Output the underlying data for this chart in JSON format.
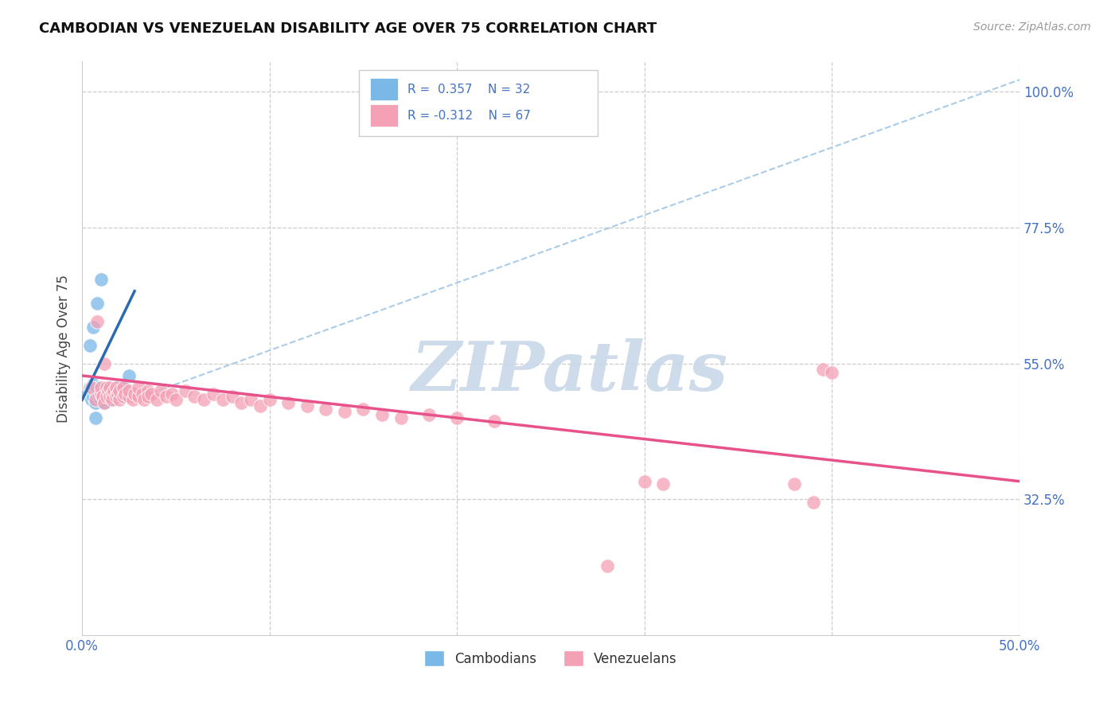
{
  "title": "CAMBODIAN VS VENEZUELAN DISABILITY AGE OVER 75 CORRELATION CHART",
  "source": "Source: ZipAtlas.com",
  "ylabel": "Disability Age Over 75",
  "xlim": [
    0.0,
    0.5
  ],
  "ylim": [
    0.1,
    1.05
  ],
  "ytick_vals": [
    0.325,
    0.55,
    0.775,
    1.0
  ],
  "ytick_labels": [
    "32.5%",
    "55.0%",
    "77.5%",
    "100.0%"
  ],
  "xtick_vals": [
    0.0,
    0.5
  ],
  "xtick_labels": [
    "0.0%",
    "50.0%"
  ],
  "cambodian_R": 0.357,
  "cambodian_N": 32,
  "venezuelan_R": -0.312,
  "venezuelan_N": 67,
  "cambodian_color": "#7ab8e8",
  "venezuelan_color": "#f4a0b5",
  "cambodian_line_color": "#2b6cb0",
  "venezuelan_line_color": "#e8528a",
  "diagonal_line_color": "#aacce8",
  "background_color": "#ffffff",
  "watermark_text": "ZIPatlas",
  "watermark_color": "#c8d8e8",
  "cambodian_points": [
    [
      0.003,
      0.5
    ],
    [
      0.004,
      0.51
    ],
    [
      0.005,
      0.49
    ],
    [
      0.005,
      0.505
    ],
    [
      0.006,
      0.495
    ],
    [
      0.006,
      0.515
    ],
    [
      0.007,
      0.5
    ],
    [
      0.007,
      0.485
    ],
    [
      0.008,
      0.505
    ],
    [
      0.008,
      0.51
    ],
    [
      0.009,
      0.495
    ],
    [
      0.009,
      0.5
    ],
    [
      0.01,
      0.49
    ],
    [
      0.01,
      0.505
    ],
    [
      0.011,
      0.5
    ],
    [
      0.011,
      0.495
    ],
    [
      0.012,
      0.51
    ],
    [
      0.012,
      0.485
    ],
    [
      0.013,
      0.5
    ],
    [
      0.014,
      0.505
    ],
    [
      0.015,
      0.495
    ],
    [
      0.016,
      0.5
    ],
    [
      0.017,
      0.49
    ],
    [
      0.018,
      0.51
    ],
    [
      0.02,
      0.505
    ],
    [
      0.022,
      0.515
    ],
    [
      0.025,
      0.53
    ],
    [
      0.004,
      0.58
    ],
    [
      0.006,
      0.61
    ],
    [
      0.008,
      0.65
    ],
    [
      0.01,
      0.69
    ],
    [
      0.007,
      0.46
    ]
  ],
  "venezuelan_points": [
    [
      0.005,
      0.51
    ],
    [
      0.007,
      0.49
    ],
    [
      0.008,
      0.62
    ],
    [
      0.01,
      0.5
    ],
    [
      0.01,
      0.51
    ],
    [
      0.011,
      0.495
    ],
    [
      0.012,
      0.485
    ],
    [
      0.012,
      0.55
    ],
    [
      0.013,
      0.51
    ],
    [
      0.013,
      0.495
    ],
    [
      0.014,
      0.505
    ],
    [
      0.015,
      0.495
    ],
    [
      0.015,
      0.51
    ],
    [
      0.016,
      0.5
    ],
    [
      0.016,
      0.49
    ],
    [
      0.017,
      0.505
    ],
    [
      0.018,
      0.495
    ],
    [
      0.018,
      0.51
    ],
    [
      0.019,
      0.5
    ],
    [
      0.02,
      0.49
    ],
    [
      0.02,
      0.505
    ],
    [
      0.022,
      0.495
    ],
    [
      0.022,
      0.51
    ],
    [
      0.023,
      0.5
    ],
    [
      0.025,
      0.495
    ],
    [
      0.025,
      0.505
    ],
    [
      0.027,
      0.49
    ],
    [
      0.028,
      0.5
    ],
    [
      0.03,
      0.495
    ],
    [
      0.03,
      0.51
    ],
    [
      0.032,
      0.5
    ],
    [
      0.033,
      0.49
    ],
    [
      0.035,
      0.505
    ],
    [
      0.035,
      0.495
    ],
    [
      0.037,
      0.5
    ],
    [
      0.04,
      0.49
    ],
    [
      0.042,
      0.505
    ],
    [
      0.045,
      0.495
    ],
    [
      0.048,
      0.5
    ],
    [
      0.05,
      0.49
    ],
    [
      0.055,
      0.505
    ],
    [
      0.06,
      0.495
    ],
    [
      0.065,
      0.49
    ],
    [
      0.07,
      0.5
    ],
    [
      0.075,
      0.49
    ],
    [
      0.08,
      0.495
    ],
    [
      0.085,
      0.485
    ],
    [
      0.09,
      0.49
    ],
    [
      0.095,
      0.48
    ],
    [
      0.1,
      0.49
    ],
    [
      0.11,
      0.485
    ],
    [
      0.12,
      0.48
    ],
    [
      0.13,
      0.475
    ],
    [
      0.14,
      0.47
    ],
    [
      0.15,
      0.475
    ],
    [
      0.16,
      0.465
    ],
    [
      0.17,
      0.46
    ],
    [
      0.185,
      0.465
    ],
    [
      0.2,
      0.46
    ],
    [
      0.22,
      0.455
    ],
    [
      0.395,
      0.54
    ],
    [
      0.4,
      0.535
    ],
    [
      0.38,
      0.35
    ],
    [
      0.39,
      0.32
    ],
    [
      0.3,
      0.355
    ],
    [
      0.31,
      0.35
    ],
    [
      0.28,
      0.215
    ]
  ],
  "blue_line": [
    [
      0.0,
      0.49
    ],
    [
      0.028,
      0.67
    ]
  ],
  "pink_line": [
    [
      0.0,
      0.53
    ],
    [
      0.5,
      0.355
    ]
  ],
  "dashed_line": [
    [
      0.027,
      0.49
    ],
    [
      0.5,
      1.02
    ]
  ]
}
